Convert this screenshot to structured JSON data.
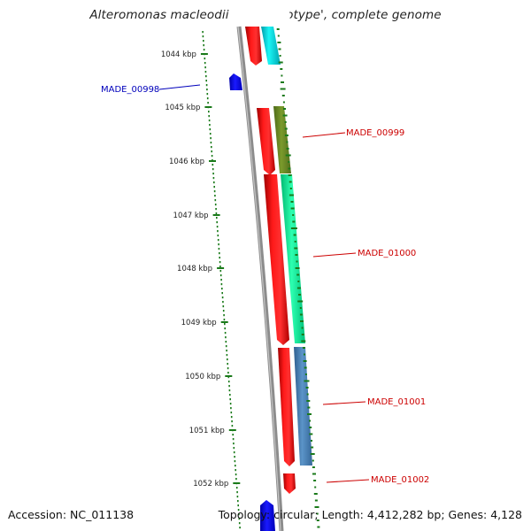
{
  "title": "Alteromonas macleodii 'Deep ecotype', complete genome",
  "footer": {
    "accession": "Accession: NC_011138",
    "topology": "Topology: circular; Length: 4,412,282 bp; Genes: 4,128"
  },
  "colors": {
    "backbone": "#8c8c8c",
    "forward_gene": "#ff0000",
    "reverse_gene": "#0000ff",
    "tick_green": "#1a7a1a",
    "label_red": "#cc0000",
    "label_blue": "#0000bb"
  },
  "ticks": [
    {
      "label": "1044 kbp"
    },
    {
      "label": "1045 kbp"
    },
    {
      "label": "1046 kbp"
    },
    {
      "label": "1047 kbp"
    },
    {
      "label": "1048 kbp"
    },
    {
      "label": "1049 kbp"
    },
    {
      "label": "1050 kbp"
    },
    {
      "label": "1051 kbp"
    },
    {
      "label": "1052 kbp"
    }
  ],
  "gene_labels": [
    {
      "text": "MADE_00998",
      "color": "#0000bb"
    },
    {
      "text": "MADE_00999",
      "color": "#cc0000"
    },
    {
      "text": "MADE_01000",
      "color": "#cc0000"
    },
    {
      "text": "MADE_01001",
      "color": "#cc0000"
    },
    {
      "text": "MADE_01002",
      "color": "#cc0000"
    }
  ],
  "cog_colors": [
    "#00e5e5",
    "#6b8e23",
    "#00ff99",
    "#4682b4"
  ]
}
